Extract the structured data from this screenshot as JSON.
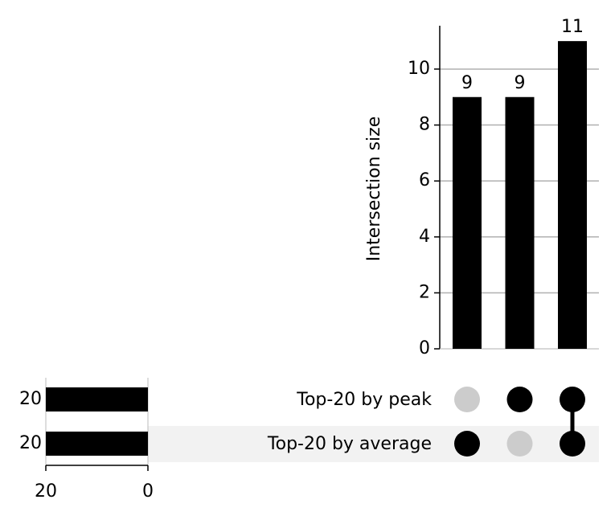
{
  "chart_data": {
    "type": "upset",
    "ylabel": "Intersection size",
    "values": [
      9,
      9,
      11
    ],
    "color": "#000000",
    "ylim": [
      0,
      11.55
    ],
    "yticks": [
      0,
      2,
      4,
      6,
      8,
      10
    ],
    "grid": true,
    "sets": [
      "Top-20 by peak",
      "Top-20 by average"
    ],
    "set_sizes": [
      20,
      20
    ],
    "xlim": [
      20,
      0
    ],
    "xticks": [
      20,
      0
    ],
    "membership": [
      [
        false,
        true
      ],
      [
        true,
        false
      ],
      [
        true,
        true
      ]
    ],
    "inactive_color": "#cccccc",
    "shade_color": "#f2f2f2"
  }
}
